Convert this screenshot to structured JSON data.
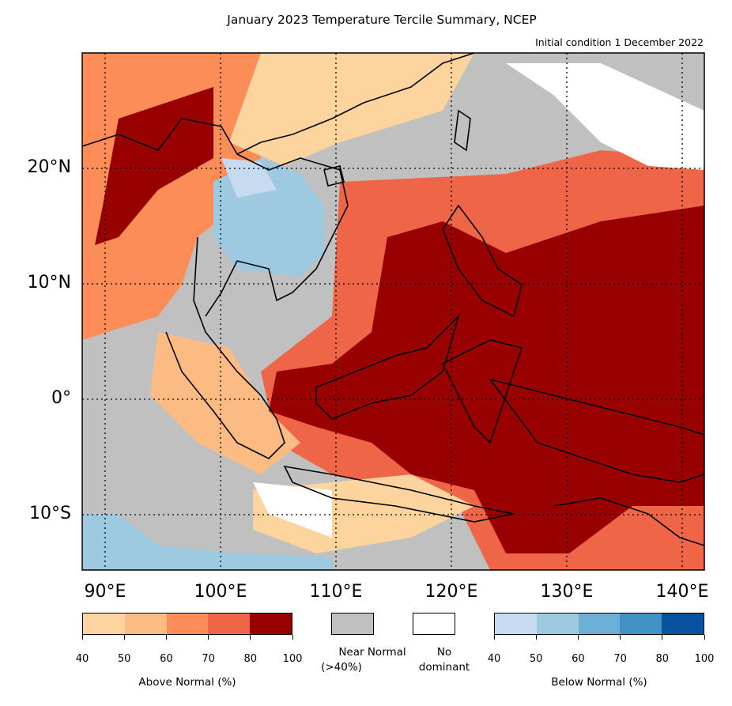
{
  "title": "January 2023 Temperature Tercile Summary, NCEP",
  "subtitle": "Initial condition 1 December 2022",
  "lat_labels": [
    "20°N",
    "10°N",
    "0°",
    "10°S"
  ],
  "lon_labels": [
    "90°E",
    "100°E",
    "110°E",
    "120°E",
    "130°E",
    "140°E"
  ],
  "legend": {
    "above": {
      "caption": "Above Normal (%)",
      "ticks": [
        "40",
        "50",
        "60",
        "70",
        "80",
        "100"
      ],
      "colors": [
        "#fdd49e",
        "#fdbb84",
        "#fc8d59",
        "#ef6548",
        "#990000"
      ]
    },
    "near": {
      "caption_line1": "Near Normal",
      "caption_line2": "(>40%)",
      "color": "#c0c0c0"
    },
    "none": {
      "caption_line1": "No",
      "caption_line2": "dominant",
      "color": "#ffffff"
    },
    "below": {
      "caption": "Below Normal (%)",
      "ticks": [
        "40",
        "50",
        "60",
        "70",
        "80",
        "100"
      ],
      "colors": [
        "#c6dbef",
        "#9ecae1",
        "#6baed6",
        "#4292c6",
        "#08519c"
      ]
    }
  }
}
